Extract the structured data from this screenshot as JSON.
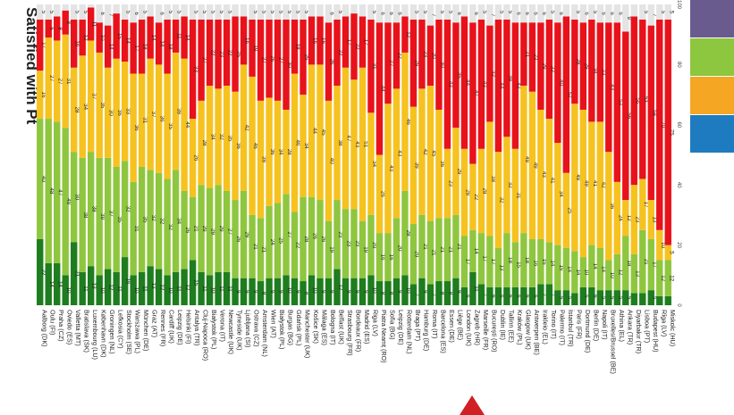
{
  "chart_data": {
    "type": "bar",
    "orientation": "stacked-100-percent",
    "title_fragment": "Satisfied with Pt",
    "yticks": [
      "0",
      "20",
      "40",
      "60",
      "80",
      "100"
    ],
    "ylim": [
      0,
      100
    ],
    "categories": [
      "Aalborg (DK)",
      "Oulu (FI)",
      "Praha (CZ)",
      "Oviedo (ES)",
      "Valletta (MT)",
      "Bratislava (SK)",
      "Luxembourg (LU)",
      "København (DK)",
      "Groningen (NL)",
      "Lefkosia (CY)",
      "Stockholm (SE)",
      "Warszawa (PL)",
      "München (DE)",
      "Graz (AT)",
      "Rennes (FR)",
      "Cardiff (UK)",
      "Leipzig (DE)",
      "Helsinki (FI)",
      "Antalya (TR)",
      "Cluj-Napoca (RO)",
      "Białystok (PL)",
      "Verona (IT)",
      "Newcastle (UK)",
      "Tyneside (UK)",
      "Ljubljana (SI)",
      "Ostrava (CZ)",
      "Amsterdam (NL)",
      "Wien (AT)",
      "Białystok (PL)",
      "Burgas (BG)",
      "Gdańsk (PL)",
      "Manchester (UK)",
      "Košice (SK)",
      "Málaga (ES)",
      "Bologna (IT)",
      "Belfast (UK)",
      "Strasbourg (FR)",
      "Bordeaux (FR)",
      "Madrid (ES)",
      "Riga (LV)",
      "Piatra Neamț (RO)",
      "Sofia (BG)",
      "Leipzig (DE)",
      "Rotterdam (NL)",
      "Braga (PT)",
      "Hamburg (DE)",
      "Roma (IT)",
      "Barcelona (ES)",
      "Essen (DE)",
      "Liège (BE)",
      "London (UK)",
      "Zagreb (HR)",
      "Marseille (FR)",
      "București (RO)",
      "Dublin (IE)",
      "Tallinn (EE)",
      "Kraków (PL)",
      "Glasgow (UK)",
      "Antwerpen (BE)",
      "Irakleio (EL)",
      "Torino (IT)",
      "Palermo (IT)",
      "İstanbul (TR)",
      "Paris (FR)",
      "Dortmund (DE)",
      "Berlin (DE)",
      "Napoli (IT)",
      "Bruxelles/Brussel (BE)",
      "Athina (EL)",
      "Ankara (TR)",
      "Diyarbakır (TR)",
      "Lisboa (PT)",
      "Budapest (HU)",
      "Rīga (LV)",
      "Miskolc (HU)"
    ],
    "series": [
      {
        "color": "#1e7d1e",
        "values": [
          22,
          14,
          14,
          10,
          21,
          11,
          13,
          10,
          12,
          11,
          16,
          10,
          11,
          13,
          12,
          10,
          11,
          12,
          15,
          11,
          10,
          11,
          11,
          9,
          9,
          9,
          8,
          9,
          9,
          10,
          9,
          8,
          10,
          9,
          9,
          12,
          9,
          9,
          9,
          10,
          8,
          8,
          9,
          10,
          7,
          9,
          7,
          8,
          8,
          9,
          6,
          11,
          7,
          6,
          6,
          6,
          6,
          6,
          6,
          7,
          7,
          5,
          5,
          4,
          6,
          6,
          5,
          5,
          5,
          5,
          4,
          4,
          5,
          3,
          3
        ]
      },
      {
        "color": "#8fc63f",
        "values": [
          40,
          48,
          47,
          49,
          30,
          38,
          38,
          39,
          37,
          35,
          32,
          31,
          35,
          32,
          32,
          32,
          34,
          26,
          21,
          29,
          29,
          29,
          27,
          26,
          29,
          21,
          21,
          24,
          25,
          27,
          22,
          28,
          26,
          26,
          19,
          23,
          23,
          23,
          19,
          20,
          16,
          16,
          20,
          28,
          20,
          21,
          21,
          21,
          21,
          21,
          17,
          14,
          17,
          17,
          13,
          18,
          15,
          18,
          16,
          15,
          14,
          15,
          14,
          14,
          10,
          14,
          14,
          10,
          12,
          18,
          13,
          21,
          17,
          12,
          12
        ]
      },
      {
        "color": "#f6c21f",
        "values": [
          16,
          27,
          27,
          31,
          28,
          34,
          37,
          35,
          30,
          36,
          33,
          36,
          31,
          37,
          36,
          35,
          39,
          44,
          26,
          28,
          34,
          32,
          35,
          36,
          42,
          46,
          39,
          36,
          34,
          28,
          46,
          34,
          44,
          45,
          40,
          38,
          47,
          43,
          51,
          34,
          26,
          43,
          43,
          46,
          39,
          42,
          45,
          36,
          23,
          29,
          29,
          22,
          28,
          38,
          32,
          32,
          31,
          49,
          49,
          43,
          41,
          34,
          25,
          49,
          49,
          41,
          42,
          36,
          24,
          12,
          23,
          17,
          13,
          10,
          5
        ]
      },
      {
        "color": "#e8121b",
        "values": [
          17,
          6,
          8,
          8,
          16,
          12,
          11,
          10,
          14,
          15,
          14,
          17,
          18,
          14,
          14,
          18,
          11,
          14,
          33,
          27,
          22,
          23,
          22,
          25,
          16,
          19,
          27,
          26,
          27,
          30,
          18,
          25,
          16,
          16,
          26,
          22,
          17,
          22,
          17,
          31,
          44,
          27,
          22,
          12,
          29,
          23,
          20,
          30,
          43,
          35,
          44,
          47,
          43,
          32,
          44,
          39,
          42,
          21,
          23,
          29,
          33,
          40,
          52,
          28,
          29,
          34,
          33,
          43,
          53,
          56,
          56,
          53,
          58,
          70,
          75
        ]
      },
      {
        "color": "#e4e4e4",
        "values": [
          5,
          5,
          4,
          2,
          5,
          5,
          1,
          6,
          7,
          3,
          5,
          6,
          5,
          4,
          6,
          5,
          5,
          4,
          5,
          5,
          5,
          5,
          5,
          4,
          4,
          5,
          5,
          5,
          5,
          5,
          5,
          5,
          4,
          4,
          6,
          5,
          4,
          3,
          4,
          5,
          6,
          6,
          6,
          4,
          5,
          5,
          7,
          5,
          5,
          6,
          4,
          6,
          5,
          7,
          5,
          5,
          6,
          6,
          6,
          6,
          5,
          6,
          4,
          5,
          6,
          5,
          6,
          6,
          6,
          9,
          4,
          5,
          7,
          5,
          5
        ]
      }
    ]
  },
  "legend": {
    "colors": [
      "#6a5b8e",
      "#8dc63f",
      "#f5a623",
      "#1f7bc0"
    ]
  },
  "logo_color": "#d11f26"
}
